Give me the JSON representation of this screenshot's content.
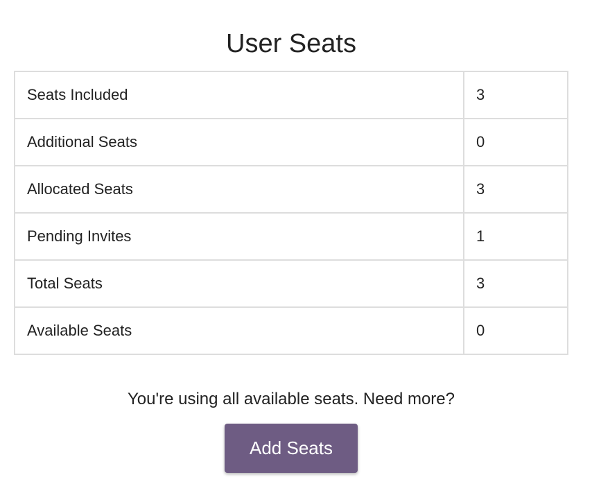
{
  "title": "User Seats",
  "rows": [
    {
      "label": "Seats Included",
      "value": "3"
    },
    {
      "label": "Additional Seats",
      "value": "0"
    },
    {
      "label": "Allocated Seats",
      "value": "3"
    },
    {
      "label": "Pending Invites",
      "value": "1"
    },
    {
      "label": "Total Seats",
      "value": "3"
    },
    {
      "label": "Available Seats",
      "value": "0"
    }
  ],
  "message": "You're using all available seats. Need more?",
  "button_label": "Add Seats",
  "colors": {
    "button": "#6e5c83"
  }
}
